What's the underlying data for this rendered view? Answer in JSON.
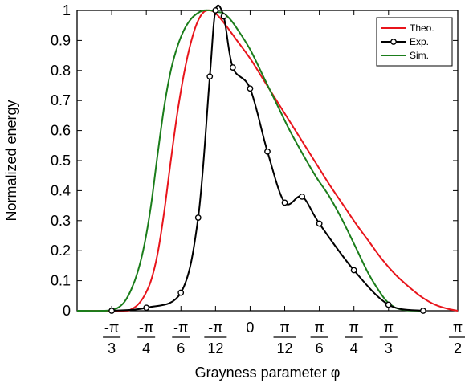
{
  "chart_data": {
    "type": "line",
    "xlabel": "Grayness parameter φ",
    "ylabel": "Normalized energy",
    "xlim": [
      -1.309,
      1.571
    ],
    "ylim": [
      0,
      1
    ],
    "grid": false,
    "legend_position": "top-right",
    "y_ticks": [
      {
        "value": 0,
        "label": "0"
      },
      {
        "value": 0.1,
        "label": "0.1"
      },
      {
        "value": 0.2,
        "label": "0.2"
      },
      {
        "value": 0.3,
        "label": "0.3"
      },
      {
        "value": 0.4,
        "label": "0.4"
      },
      {
        "value": 0.5,
        "label": "0.5"
      },
      {
        "value": 0.6,
        "label": "0.6"
      },
      {
        "value": 0.7,
        "label": "0.7"
      },
      {
        "value": 0.8,
        "label": "0.8"
      },
      {
        "value": 0.9,
        "label": "0.9"
      },
      {
        "value": 1,
        "label": "1"
      }
    ],
    "x_ticks": [
      {
        "value": -1.0472,
        "num": "-π",
        "den": "3"
      },
      {
        "value": -0.7854,
        "num": "-π",
        "den": "4"
      },
      {
        "value": -0.5236,
        "num": "-π",
        "den": "6"
      },
      {
        "value": -0.2618,
        "num": "-π",
        "den": "12"
      },
      {
        "value": 0,
        "num": "0",
        "den": ""
      },
      {
        "value": 0.2618,
        "num": "π",
        "den": "12"
      },
      {
        "value": 0.5236,
        "num": "π",
        "den": "6"
      },
      {
        "value": 0.7854,
        "num": "π",
        "den": "4"
      },
      {
        "value": 1.0472,
        "num": "π",
        "den": "3"
      },
      {
        "value": 1.5708,
        "num": "π",
        "den": "2"
      }
    ],
    "series": [
      {
        "name": "Theo.",
        "color": "#e8141b",
        "marker": "none",
        "x": [
          -1.309,
          -0.96,
          -0.9,
          -0.85,
          -0.8,
          -0.75,
          -0.7,
          -0.65,
          -0.6,
          -0.55,
          -0.5,
          -0.45,
          -0.4,
          -0.35,
          -0.3,
          -0.26,
          -0.2,
          -0.1,
          0,
          0.1,
          0.2,
          0.3,
          0.4,
          0.5,
          0.6,
          0.7,
          0.8,
          0.9,
          1.0,
          1.1,
          1.2,
          1.3,
          1.4,
          1.5,
          1.571
        ],
        "y": [
          0,
          0,
          0.005,
          0.02,
          0.05,
          0.1,
          0.19,
          0.33,
          0.5,
          0.66,
          0.79,
          0.89,
          0.96,
          0.995,
          1.0,
          0.99,
          0.96,
          0.9,
          0.84,
          0.77,
          0.7,
          0.63,
          0.56,
          0.49,
          0.42,
          0.355,
          0.29,
          0.23,
          0.17,
          0.12,
          0.08,
          0.045,
          0.02,
          0.006,
          0
        ]
      },
      {
        "name": "Exp.",
        "color": "#000000",
        "marker": "circle",
        "x": [
          -1.047,
          -0.785,
          -0.524,
          -0.393,
          -0.305,
          -0.262,
          -0.2,
          -0.131,
          0,
          0.131,
          0.262,
          0.393,
          0.524,
          0.785,
          1.047,
          1.309
        ],
        "y": [
          0,
          0.01,
          0.06,
          0.31,
          0.78,
          1.0,
          0.98,
          0.81,
          0.74,
          0.53,
          0.36,
          0.38,
          0.29,
          0.135,
          0.02,
          0
        ]
      },
      {
        "name": "Sim.",
        "color": "#1b7d1b",
        "marker": "none",
        "x": [
          -1.309,
          -1.1,
          -1.05,
          -1.0,
          -0.95,
          -0.9,
          -0.85,
          -0.8,
          -0.75,
          -0.7,
          -0.65,
          -0.6,
          -0.55,
          -0.5,
          -0.45,
          -0.4,
          -0.35,
          -0.3,
          -0.25,
          -0.2,
          -0.15,
          -0.1,
          0,
          0.1,
          0.2,
          0.3,
          0.4,
          0.5,
          0.6,
          0.7,
          0.8,
          0.9,
          1.0,
          1.05,
          1.1,
          1.15,
          1.2,
          1.3
        ],
        "y": [
          0,
          0,
          0.003,
          0.01,
          0.03,
          0.07,
          0.13,
          0.22,
          0.35,
          0.52,
          0.68,
          0.8,
          0.88,
          0.935,
          0.97,
          0.99,
          1.0,
          1.0,
          0.995,
          0.99,
          0.97,
          0.94,
          0.87,
          0.78,
          0.69,
          0.6,
          0.52,
          0.445,
          0.38,
          0.3,
          0.21,
          0.12,
          0.05,
          0.025,
          0.01,
          0.004,
          0.001,
          0
        ]
      }
    ]
  }
}
